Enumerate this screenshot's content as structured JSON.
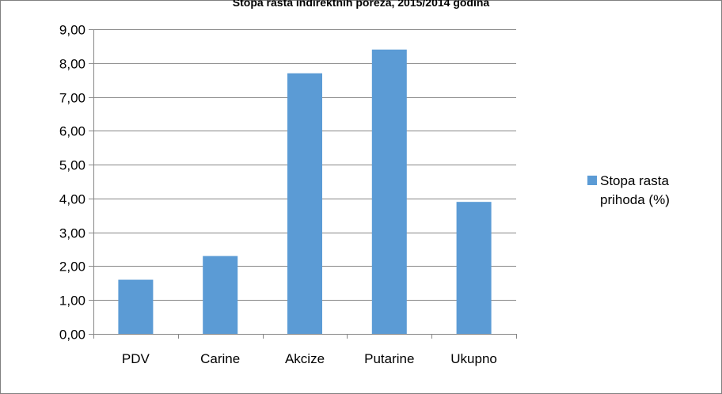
{
  "chart_data": {
    "type": "bar",
    "title": "Stopa rasta indirektnih poreza, 2015/2014 godina",
    "categories": [
      "PDV",
      "Carine",
      "Akcize",
      "Putarine",
      "Ukupno"
    ],
    "series": [
      {
        "name": "Stopa rasta prihoda (%)",
        "legend_lines": [
          "Stopa rasta",
          "prihoda (%)"
        ],
        "values": [
          1.6,
          2.3,
          7.7,
          8.4,
          3.9
        ],
        "color": "#5b9bd5"
      }
    ],
    "y_ticks": [
      "0,00",
      "1,00",
      "2,00",
      "3,00",
      "4,00",
      "5,00",
      "6,00",
      "7,00",
      "8,00",
      "9,00"
    ],
    "ylim": [
      0,
      9
    ],
    "xlabel": "",
    "ylabel": "",
    "grid": true,
    "legend_position": "right"
  }
}
